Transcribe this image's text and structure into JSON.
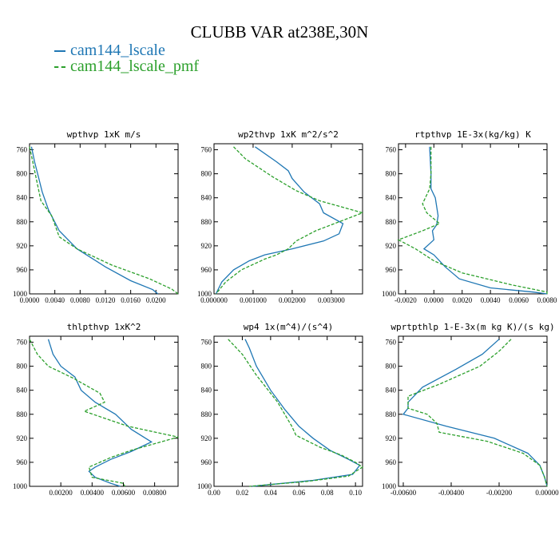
{
  "title": "CLUBB VAR at238E,30N",
  "legend": [
    "cam144_lscale",
    "cam144_lscale_pmf"
  ],
  "colors": {
    "cam144_lscale": "#1f77b4",
    "cam144_lscale_pmf": "#2ca02c"
  },
  "chart_data": [
    {
      "type": "line",
      "title": "wpthvp  1xK m/s",
      "ylim": [
        1000,
        750
      ],
      "yticks": [
        "760",
        "800",
        "840",
        "880",
        "920",
        "960",
        "1000"
      ],
      "xlim": [
        0.0,
        0.0235
      ],
      "xticks": [
        {
          "v": 0.0,
          "label": "0.0000"
        },
        {
          "v": 0.004,
          "label": "0.0040"
        },
        {
          "v": 0.008,
          "label": "0.0080"
        },
        {
          "v": 0.012,
          "label": "0.0120"
        },
        {
          "v": 0.016,
          "label": "0.0160"
        },
        {
          "v": 0.02,
          "label": "0.0200"
        }
      ],
      "series": [
        {
          "name": "cam144_lscale",
          "points": [
            [
              0.0003,
              755
            ],
            [
              0.0008,
              780
            ],
            [
              0.0014,
              805
            ],
            [
              0.002,
              830
            ],
            [
              0.003,
              860
            ],
            [
              0.0047,
              895
            ],
            [
              0.0075,
              925
            ],
            [
              0.012,
              955
            ],
            [
              0.016,
              978
            ],
            [
              0.0195,
              993
            ],
            [
              0.0203,
              1000
            ]
          ]
        },
        {
          "name": "cam144_lscale_pmf",
          "points": [
            [
              0.0,
              755
            ],
            [
              0.0005,
              780
            ],
            [
              0.0012,
              815
            ],
            [
              0.0018,
              845
            ],
            [
              0.0035,
              870
            ],
            [
              0.0047,
              905
            ],
            [
              0.0075,
              925
            ],
            [
              0.013,
              952
            ],
            [
              0.019,
              975
            ],
            [
              0.0225,
              992
            ],
            [
              0.0235,
              1000
            ]
          ]
        }
      ]
    },
    {
      "type": "line",
      "title": "wp2thvp  1xK m^2/s^2",
      "ylim": [
        1000,
        750
      ],
      "yticks": [
        "760",
        "800",
        "840",
        "880",
        "920",
        "960",
        "1000"
      ],
      "xlim": [
        0.0,
        0.0038
      ],
      "xticks": [
        {
          "v": 0.0,
          "label": "0.000000"
        },
        {
          "v": 0.001,
          "label": "0.001000"
        },
        {
          "v": 0.002,
          "label": "0.002000"
        },
        {
          "v": 0.003,
          "label": "0.003000"
        }
      ],
      "series": [
        {
          "name": "cam144_lscale",
          "points": [
            [
              0.00105,
              755
            ],
            [
              0.0016,
              780
            ],
            [
              0.0019,
              795
            ],
            [
              0.002,
              808
            ],
            [
              0.0023,
              830
            ],
            [
              0.0027,
              850
            ],
            [
              0.0028,
              865
            ],
            [
              0.0033,
              883
            ],
            [
              0.0032,
              900
            ],
            [
              0.0028,
              912
            ],
            [
              0.002,
              925
            ],
            [
              0.0013,
              935
            ],
            [
              0.0009,
              945
            ],
            [
              0.0005,
              960
            ],
            [
              0.0002,
              980
            ],
            [
              5e-05,
              1000
            ]
          ]
        },
        {
          "name": "cam144_lscale_pmf",
          "points": [
            [
              0.0005,
              755
            ],
            [
              0.0008,
              775
            ],
            [
              0.0015,
              805
            ],
            [
              0.0021,
              828
            ],
            [
              0.0027,
              845
            ],
            [
              0.0038,
              865
            ],
            [
              0.0026,
              895
            ],
            [
              0.0021,
              912
            ],
            [
              0.0019,
              925
            ],
            [
              0.0016,
              935
            ],
            [
              0.0013,
              942
            ],
            [
              0.0007,
              960
            ],
            [
              0.0003,
              980
            ],
            [
              5e-05,
              1000
            ]
          ]
        }
      ]
    },
    {
      "type": "line",
      "title": "rtpthvp  1E-3x(kg/kg) K",
      "ylim": [
        1000,
        750
      ],
      "yticks": [
        "760",
        "800",
        "840",
        "880",
        "920",
        "960",
        "1000"
      ],
      "xlim": [
        -0.0025,
        0.008
      ],
      "xticks": [
        {
          "v": -0.002,
          "label": "-0.0020"
        },
        {
          "v": 0.0,
          "label": "0.0000"
        },
        {
          "v": 0.002,
          "label": "0.0020"
        },
        {
          "v": 0.004,
          "label": "0.0040"
        },
        {
          "v": 0.006,
          "label": "0.0060"
        },
        {
          "v": 0.008,
          "label": "0.0080"
        }
      ],
      "series": [
        {
          "name": "cam144_lscale",
          "points": [
            [
              -0.0003,
              755
            ],
            [
              -0.0002,
              800
            ],
            [
              -0.0002,
              825
            ],
            [
              0.0001,
              840
            ],
            [
              0.0003,
              870
            ],
            [
              0.0002,
              885
            ],
            [
              -0.0001,
              895
            ],
            [
              0.0,
              910
            ],
            [
              -0.0007,
              925
            ],
            [
              0.0,
              935
            ],
            [
              0.0008,
              955
            ],
            [
              0.0018,
              975
            ],
            [
              0.004,
              990
            ],
            [
              0.007,
              997
            ],
            [
              0.008,
              1000
            ]
          ]
        },
        {
          "name": "cam144_lscale_pmf",
          "points": [
            [
              -0.0002,
              755
            ],
            [
              -0.0002,
              800
            ],
            [
              -0.0003,
              825
            ],
            [
              -0.0008,
              850
            ],
            [
              -0.0005,
              865
            ],
            [
              0.0004,
              883
            ],
            [
              -0.0008,
              895
            ],
            [
              -0.0025,
              910
            ],
            [
              -0.0013,
              925
            ],
            [
              0.0,
              945
            ],
            [
              0.002,
              965
            ],
            [
              0.0055,
              985
            ],
            [
              0.008,
              997
            ],
            [
              0.008,
              1000
            ]
          ]
        }
      ]
    },
    {
      "type": "line",
      "title": "thlpthvp  1xK^2",
      "ylim": [
        1000,
        750
      ],
      "yticks": [
        "760",
        "800",
        "840",
        "880",
        "920",
        "960",
        "1000"
      ],
      "xlim": [
        0.0,
        0.0095
      ],
      "xticks": [
        {
          "v": 0.002,
          "label": "0.00200"
        },
        {
          "v": 0.004,
          "label": "0.00400"
        },
        {
          "v": 0.006,
          "label": "0.00600"
        },
        {
          "v": 0.008,
          "label": "0.00800"
        }
      ],
      "series": [
        {
          "name": "cam144_lscale",
          "points": [
            [
              0.0012,
              755
            ],
            [
              0.0015,
              780
            ],
            [
              0.002,
              800
            ],
            [
              0.0029,
              818
            ],
            [
              0.0033,
              840
            ],
            [
              0.0042,
              860
            ],
            [
              0.0055,
              880
            ],
            [
              0.0065,
              905
            ],
            [
              0.0078,
              926
            ],
            [
              0.0065,
              942
            ],
            [
              0.0052,
              955
            ],
            [
              0.0042,
              968
            ],
            [
              0.0038,
              975
            ],
            [
              0.0042,
              985
            ],
            [
              0.0052,
              995
            ],
            [
              0.0058,
              1000
            ]
          ]
        },
        {
          "name": "cam144_lscale_pmf",
          "points": [
            [
              0.0,
              755
            ],
            [
              0.0005,
              780
            ],
            [
              0.0012,
              800
            ],
            [
              0.0028,
              820
            ],
            [
              0.0045,
              845
            ],
            [
              0.0048,
              860
            ],
            [
              0.0035,
              875
            ],
            [
              0.0063,
              900
            ],
            [
              0.0095,
              918
            ],
            [
              0.0065,
              940
            ],
            [
              0.0052,
              952
            ],
            [
              0.0038,
              968
            ],
            [
              0.004,
              985
            ],
            [
              0.006,
              995
            ],
            [
              0.0061,
              1000
            ]
          ]
        }
      ]
    },
    {
      "type": "line",
      "title": "wp4  1x(m^4)/(s^4)",
      "ylim": [
        1000,
        750
      ],
      "yticks": [
        "760",
        "800",
        "840",
        "880",
        "920",
        "960",
        "1000"
      ],
      "xlim": [
        0.0,
        0.105
      ],
      "xticks": [
        {
          "v": 0.0,
          "label": "0.00"
        },
        {
          "v": 0.02,
          "label": "0.02"
        },
        {
          "v": 0.04,
          "label": "0.04"
        },
        {
          "v": 0.06,
          "label": "0.06"
        },
        {
          "v": 0.08,
          "label": "0.08"
        },
        {
          "v": 0.1,
          "label": "0.10"
        }
      ],
      "series": [
        {
          "name": "cam144_lscale",
          "points": [
            [
              0.022,
              755
            ],
            [
              0.025,
              770
            ],
            [
              0.03,
              800
            ],
            [
              0.04,
              840
            ],
            [
              0.05,
              872
            ],
            [
              0.06,
              900
            ],
            [
              0.07,
              920
            ],
            [
              0.082,
              940
            ],
            [
              0.095,
              955
            ],
            [
              0.103,
              965
            ],
            [
              0.098,
              980
            ],
            [
              0.07,
              990
            ],
            [
              0.04,
              997
            ],
            [
              0.027,
              1000
            ]
          ]
        },
        {
          "name": "cam144_lscale_pmf",
          "points": [
            [
              0.01,
              755
            ],
            [
              0.02,
              780
            ],
            [
              0.03,
              815
            ],
            [
              0.045,
              860
            ],
            [
              0.055,
              900
            ],
            [
              0.058,
              915
            ],
            [
              0.075,
              935
            ],
            [
              0.09,
              948
            ],
            [
              0.1,
              960
            ],
            [
              0.105,
              968
            ],
            [
              0.095,
              983
            ],
            [
              0.065,
              992
            ],
            [
              0.035,
              998
            ],
            [
              0.025,
              1000
            ]
          ]
        }
      ]
    },
    {
      "type": "line",
      "title": "wprtpthlp  1-E-3x(m kg K)/(s kg)",
      "ylim": [
        1000,
        750
      ],
      "yticks": [
        "760",
        "800",
        "840",
        "880",
        "920",
        "960",
        "1000"
      ],
      "xlim": [
        -0.0062,
        0.0
      ],
      "xticks": [
        {
          "v": -0.006,
          "label": "-0.00600"
        },
        {
          "v": -0.004,
          "label": "-0.00400"
        },
        {
          "v": -0.002,
          "label": "-0.00200"
        },
        {
          "v": 0.0,
          "label": "0.00000"
        }
      ],
      "series": [
        {
          "name": "cam144_lscale",
          "points": [
            [
              -0.002,
              755
            ],
            [
              -0.0027,
              780
            ],
            [
              -0.0038,
              805
            ],
            [
              -0.0052,
              835
            ],
            [
              -0.0058,
              860
            ],
            [
              -0.0058,
              870
            ],
            [
              -0.006,
              880
            ],
            [
              -0.0042,
              900
            ],
            [
              -0.0022,
              920
            ],
            [
              -0.0008,
              945
            ],
            [
              -0.0003,
              965
            ],
            [
              -0.0001,
              985
            ],
            [
              0.0,
              1000
            ]
          ]
        },
        {
          "name": "cam144_lscale_pmf",
          "points": [
            [
              -0.0015,
              755
            ],
            [
              -0.002,
              775
            ],
            [
              -0.0028,
              800
            ],
            [
              -0.0045,
              830
            ],
            [
              -0.0058,
              850
            ],
            [
              -0.0058,
              870
            ],
            [
              -0.005,
              880
            ],
            [
              -0.0046,
              895
            ],
            [
              -0.0045,
              910
            ],
            [
              -0.0025,
              925
            ],
            [
              -0.001,
              945
            ],
            [
              -0.0003,
              965
            ],
            [
              -0.0001,
              985
            ],
            [
              0.0,
              1000
            ]
          ]
        }
      ]
    }
  ]
}
